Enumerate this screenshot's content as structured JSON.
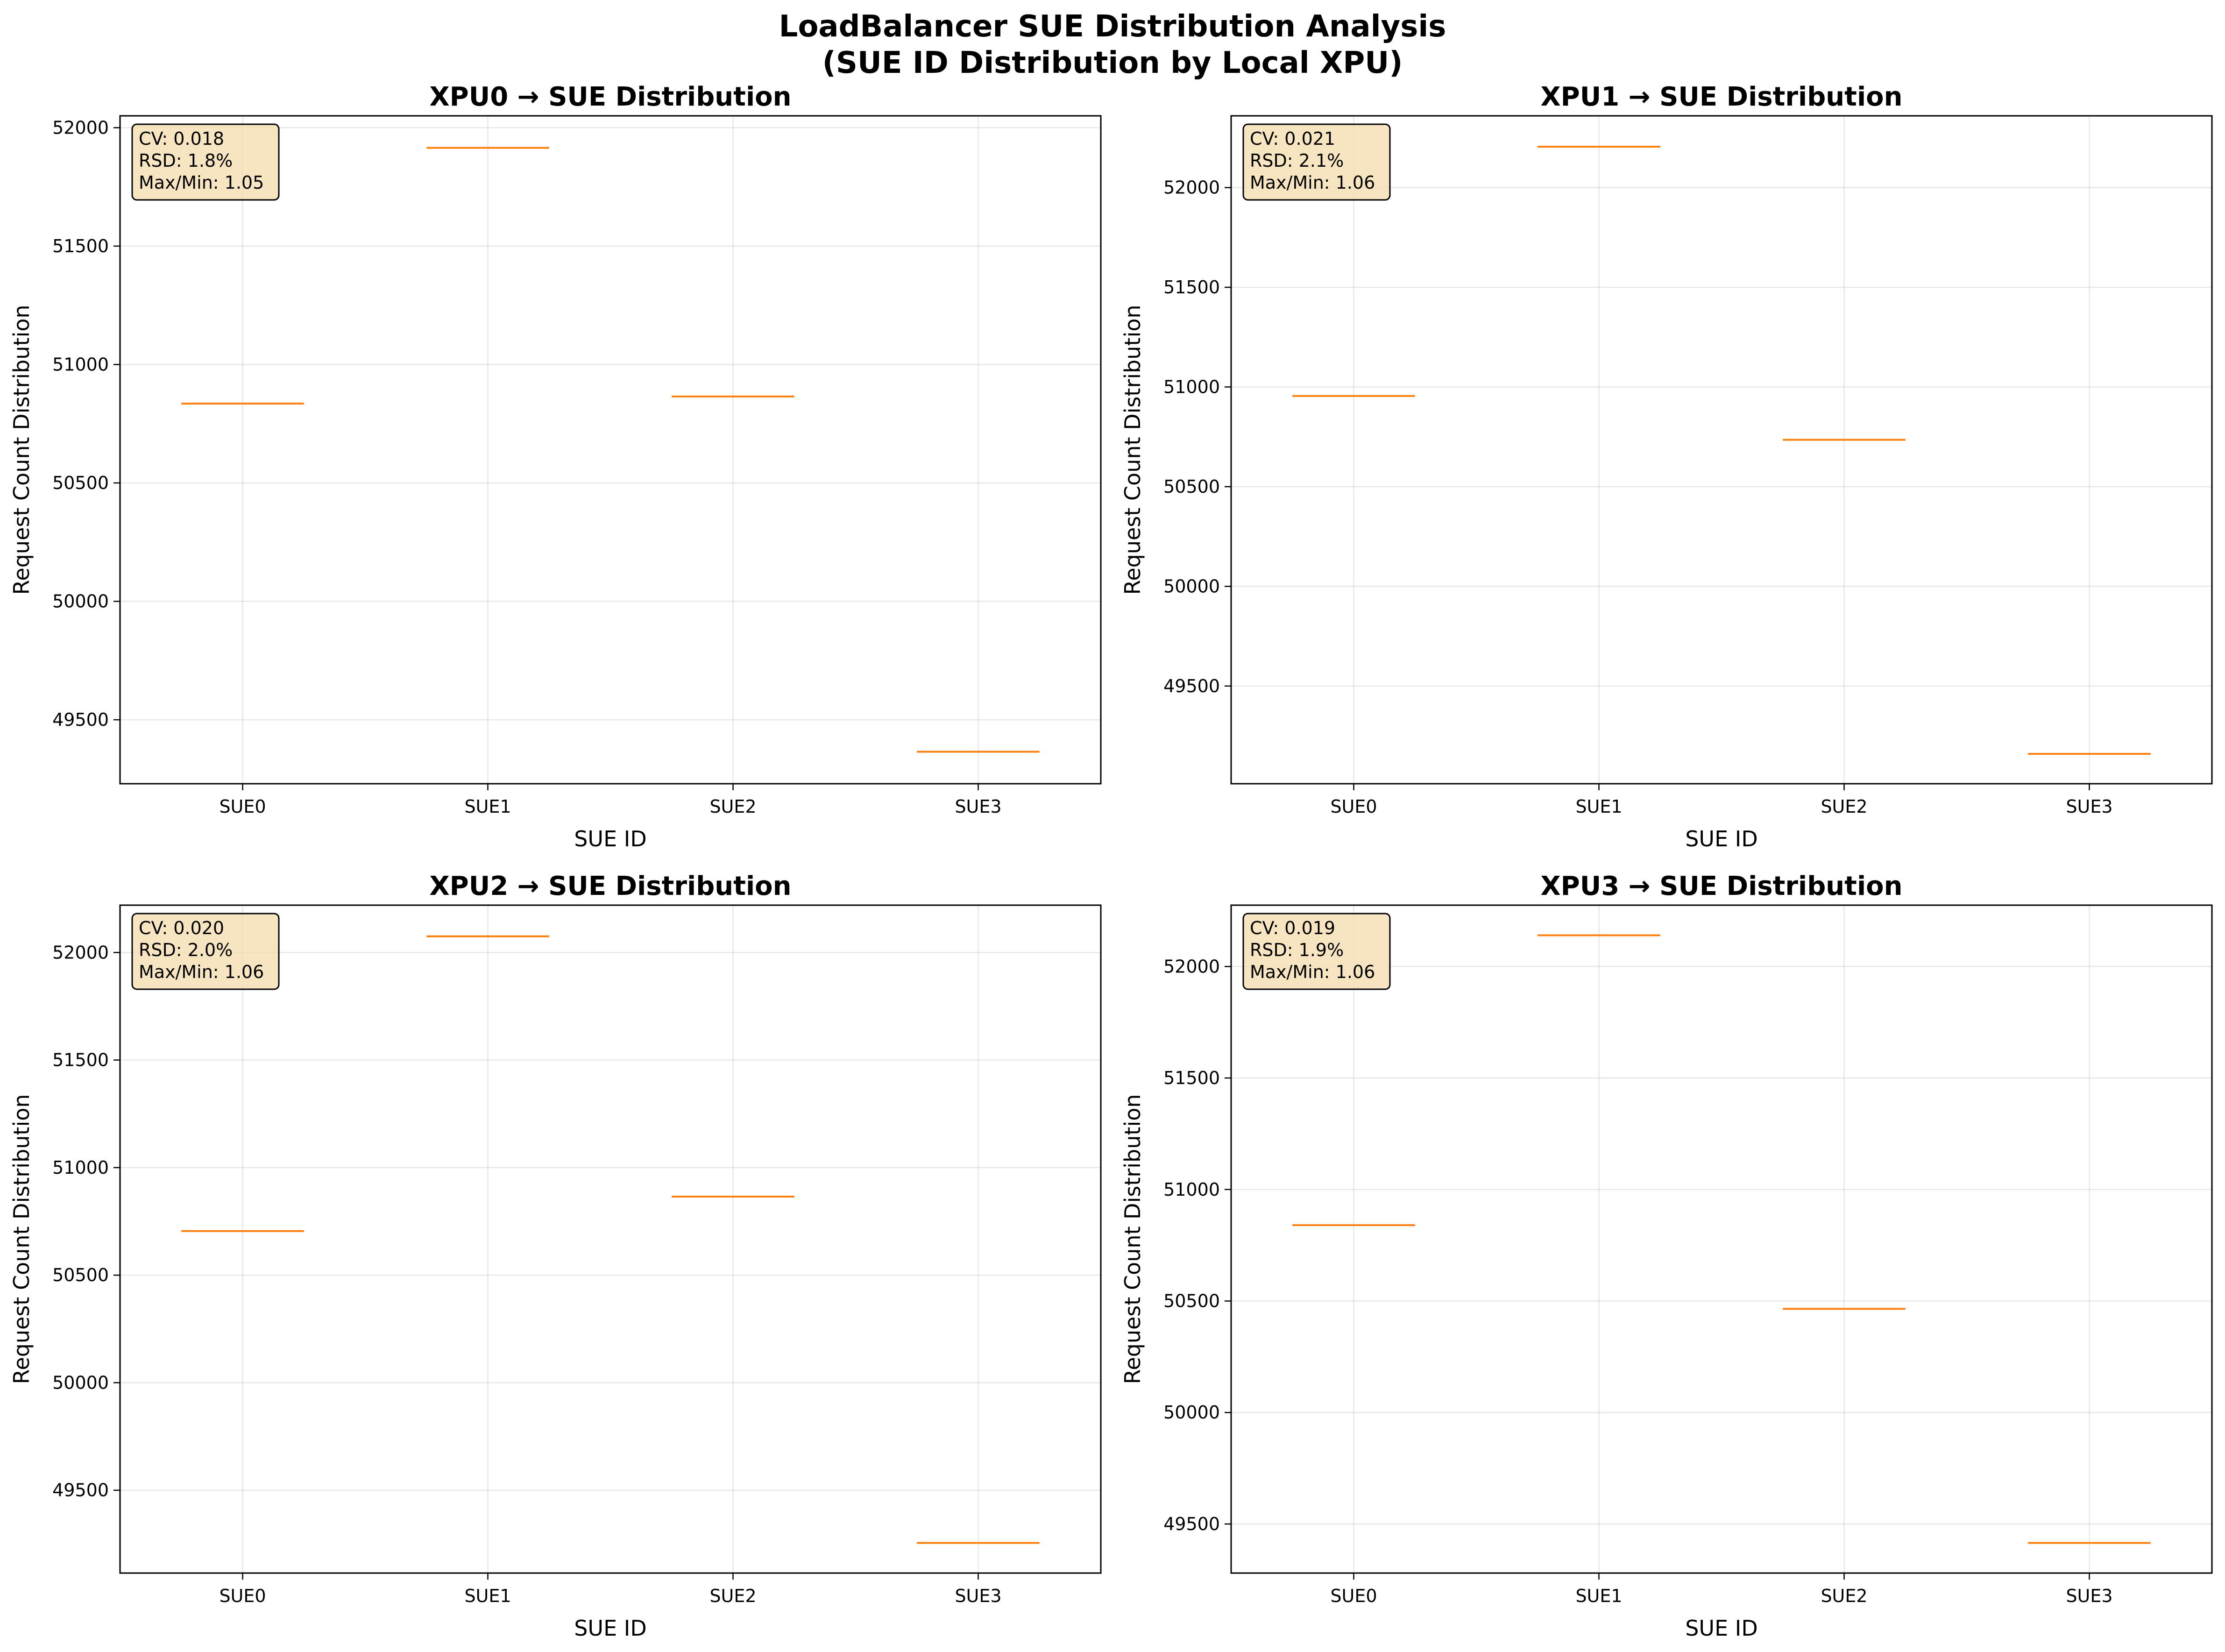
{
  "figure": {
    "title_line1": "LoadBalancer SUE Distribution Analysis",
    "title_line2": "(SUE ID Distribution by Local XPU)"
  },
  "colors": {
    "median": "#ff7f0e",
    "stat_box_fill": "#f5deb3",
    "frame": "#000000",
    "grid": "#b0b0b0"
  },
  "chart_data": [
    {
      "type": "box",
      "title": "XPU0 → SUE Distribution",
      "xlabel": "SUE ID",
      "ylabel": "Request Count Distribution",
      "categories": [
        "SUE0",
        "SUE1",
        "SUE2",
        "SUE3"
      ],
      "values": [
        50835,
        51915,
        50865,
        49365
      ],
      "ylim": [
        49230,
        52050
      ],
      "yticks": [
        49500,
        50000,
        50500,
        51000,
        51500,
        52000
      ],
      "grid": true,
      "stats": [
        "CV: 0.018",
        "RSD: 1.8%",
        "Max/Min: 1.05"
      ]
    },
    {
      "type": "box",
      "title": "XPU1 → SUE Distribution",
      "xlabel": "SUE ID",
      "ylabel": "Request Count Distribution",
      "categories": [
        "SUE0",
        "SUE1",
        "SUE2",
        "SUE3"
      ],
      "values": [
        50955,
        52205,
        50735,
        49160
      ],
      "ylim": [
        49010,
        52360
      ],
      "yticks": [
        49500,
        50000,
        50500,
        51000,
        51500,
        52000
      ],
      "grid": true,
      "stats": [
        "CV: 0.021",
        "RSD: 2.1%",
        "Max/Min: 1.06"
      ]
    },
    {
      "type": "box",
      "title": "XPU2 → SUE Distribution",
      "xlabel": "SUE ID",
      "ylabel": "Request Count Distribution",
      "categories": [
        "SUE0",
        "SUE1",
        "SUE2",
        "SUE3"
      ],
      "values": [
        50705,
        52075,
        50865,
        49255
      ],
      "ylim": [
        49115,
        52220
      ],
      "yticks": [
        49500,
        50000,
        50500,
        51000,
        51500,
        52000
      ],
      "grid": true,
      "stats": [
        "CV: 0.020",
        "RSD: 2.0%",
        "Max/Min: 1.06"
      ]
    },
    {
      "type": "box",
      "title": "XPU3 → SUE Distribution",
      "xlabel": "SUE ID",
      "ylabel": "Request Count Distribution",
      "categories": [
        "SUE0",
        "SUE1",
        "SUE2",
        "SUE3"
      ],
      "values": [
        50840,
        52140,
        50465,
        49415
      ],
      "ylim": [
        49280,
        52275
      ],
      "yticks": [
        49500,
        50000,
        50500,
        51000,
        51500,
        52000
      ],
      "grid": true,
      "stats": [
        "CV: 0.019",
        "RSD: 1.9%",
        "Max/Min: 1.06"
      ]
    }
  ]
}
